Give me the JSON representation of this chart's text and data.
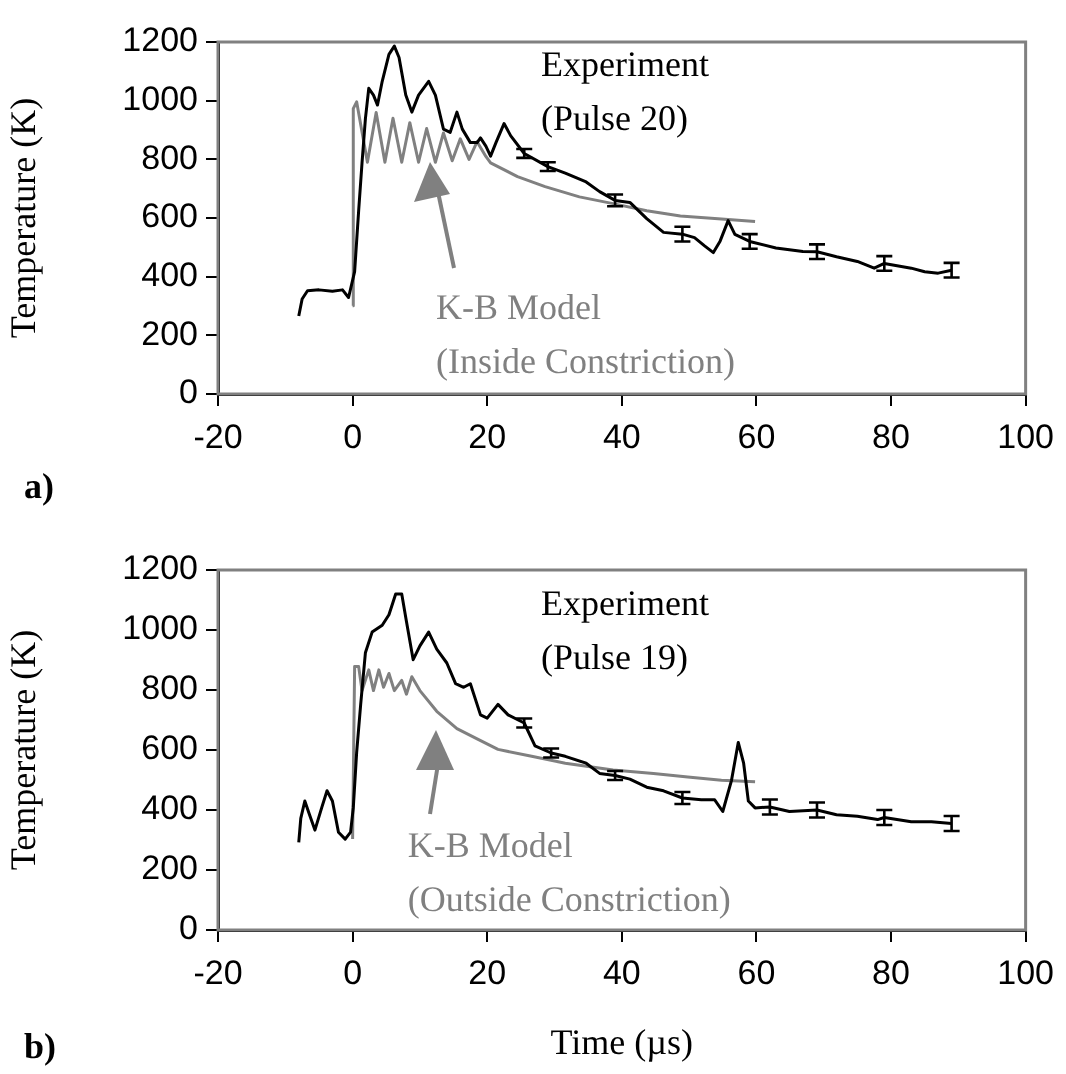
{
  "chart_data": [
    {
      "type": "line",
      "ylabel": "Temperature (K)",
      "xlim": [
        -20,
        100
      ],
      "xticks": [
        -20,
        0,
        20,
        40,
        60,
        80,
        100
      ],
      "ylim": [
        0,
        1200
      ],
      "yticks": [
        0,
        200,
        400,
        600,
        800,
        1000,
        1200
      ],
      "grid": false,
      "legend": false,
      "marker": "none",
      "annotations": [
        "Experiment (Pulse 20)",
        "K-B Model (Inside Constriction)",
        "a)"
      ],
      "series": [
        {
          "color": "#000000",
          "x": [
            -8,
            -7.5,
            -6.7,
            -5,
            -3,
            -1.5,
            -0.6,
            0.3,
            0.9,
            1.4,
            1.9,
            2.4,
            3.1,
            3.7,
            4.4,
            5.4,
            6.2,
            6.9,
            7.9,
            8.8,
            9.8,
            11.3,
            12.3,
            13.5,
            14.5,
            15.5,
            16.3,
            17.5,
            18.5,
            19,
            19.8,
            20.5,
            21.3,
            22.5,
            23.5,
            25.5,
            29,
            31.6,
            34.7,
            36.7,
            39,
            41.2,
            43.7,
            46.2,
            49,
            50.8,
            52.3,
            53.6,
            54.6,
            55.8,
            56.8,
            59,
            62.9,
            66.9,
            69,
            71.9,
            75,
            77.5,
            79,
            83,
            85,
            87,
            89
          ],
          "values": [
            266,
            324,
            352,
            355,
            350,
            355,
            329,
            417,
            625,
            788,
            938,
            1042,
            1019,
            985,
            1066,
            1158,
            1186,
            1147,
            1019,
            961,
            1019,
            1066,
            1019,
            903,
            892,
            961,
            903,
            857,
            857,
            873,
            845,
            811,
            857,
            922,
            880,
            820,
            775,
            753,
            723,
            690,
            660,
            653,
            598,
            551,
            545,
            533,
            505,
            482,
            521,
            591,
            544,
            520,
            498,
            486,
            485,
            468,
            452,
            429,
            445,
            429,
            417,
            412,
            422
          ],
          "errors": [
            null,
            null,
            null,
            null,
            null,
            null,
            null,
            null,
            null,
            null,
            null,
            null,
            null,
            null,
            null,
            null,
            null,
            null,
            null,
            null,
            null,
            null,
            null,
            null,
            null,
            null,
            null,
            null,
            null,
            null,
            null,
            null,
            null,
            null,
            null,
            15,
            15,
            null,
            null,
            null,
            20,
            null,
            null,
            null,
            25,
            null,
            null,
            null,
            null,
            null,
            null,
            25,
            null,
            null,
            25,
            null,
            null,
            null,
            25,
            null,
            null,
            null,
            25
          ]
        },
        {
          "color": "#808080",
          "x": [
            0,
            0.1,
            0.6,
            2.2,
            3.5,
            4.8,
            6,
            7.3,
            8.5,
            9.8,
            11,
            12.3,
            13.5,
            14.8,
            16,
            17.3,
            18.5,
            19.8,
            20.5,
            24.5,
            28.6,
            33.7,
            38.7,
            43.7,
            48.7,
            53.8,
            59.8
          ],
          "values": [
            301,
            973,
            996,
            790,
            960,
            790,
            940,
            790,
            925,
            790,
            905,
            790,
            890,
            795,
            870,
            800,
            860,
            810,
            788,
            741,
            707,
            672,
            649,
            625,
            607,
            598,
            588
          ]
        }
      ]
    },
    {
      "type": "line",
      "xlabel": "Time (µs)",
      "ylabel": "Temperature (K)",
      "xlim": [
        -20,
        100
      ],
      "xticks": [
        -20,
        0,
        20,
        40,
        60,
        80,
        100
      ],
      "ylim": [
        0,
        1200
      ],
      "yticks": [
        0,
        200,
        400,
        600,
        800,
        1000,
        1200
      ],
      "grid": false,
      "legend": false,
      "marker": "none",
      "annotations": [
        "Experiment (Pulse 19)",
        "K-B Model (Outside Constriction)",
        "b)"
      ],
      "series": [
        {
          "color": "#000000",
          "x": [
            -8,
            -7.7,
            -7.1,
            -6.4,
            -5.6,
            -4.6,
            -3.8,
            -3,
            -2.1,
            -1.1,
            -0.3,
            0.1,
            0.6,
            1.2,
            1.9,
            2.9,
            4.4,
            5.4,
            6.4,
            7.3,
            8,
            9,
            10,
            11.3,
            12.5,
            14,
            15.3,
            16.5,
            17.5,
            19,
            20,
            21.6,
            23.1,
            25.5,
            27.1,
            29.5,
            31.6,
            34.7,
            36.7,
            39,
            41.2,
            43.7,
            46.2,
            49,
            51.8,
            53.8,
            55,
            56.3,
            57.3,
            58.1,
            58.8,
            59.8,
            62,
            64.9,
            69,
            71.9,
            75,
            78,
            79,
            83,
            86,
            89
          ],
          "values": [
            292,
            372,
            430,
            384,
            333,
            407,
            464,
            430,
            326,
            303,
            326,
            407,
            591,
            752,
            924,
            993,
            1016,
            1051,
            1120,
            1120,
            1028,
            901,
            947,
            993,
            936,
            890,
            821,
            809,
            821,
            717,
            706,
            752,
            717,
            690,
            614,
            590,
            579,
            556,
            522,
            515,
            503,
            476,
            464,
            440,
            434,
            434,
            395,
            499,
            625,
            556,
            430,
            407,
            410,
            395,
            400,
            384,
            379,
            368,
            375,
            361,
            361,
            355
          ],
          "errors": [
            null,
            null,
            null,
            null,
            null,
            null,
            null,
            null,
            null,
            null,
            null,
            null,
            null,
            null,
            null,
            null,
            null,
            null,
            null,
            null,
            null,
            null,
            null,
            null,
            null,
            null,
            null,
            null,
            null,
            null,
            null,
            null,
            null,
            15,
            null,
            15,
            null,
            null,
            null,
            15,
            null,
            null,
            null,
            20,
            null,
            null,
            null,
            null,
            null,
            null,
            null,
            null,
            25,
            null,
            25,
            null,
            null,
            null,
            25,
            null,
            null,
            25
          ]
        },
        {
          "color": "#808080",
          "x": [
            0,
            0.3,
            0.9,
            1.4,
            2.4,
            3.1,
            3.9,
            4.6,
            5.4,
            6.2,
            7.3,
            8,
            8.8,
            10,
            12.5,
            15.5,
            18.5,
            21.6,
            26.6,
            31.6,
            38.7,
            44.7,
            49.8,
            54.8,
            59.8
          ],
          "values": [
            303,
            878,
            878,
            798,
            867,
            798,
            867,
            809,
            855,
            798,
            832,
            786,
            844,
            798,
            729,
            671,
            637,
            602,
            579,
            556,
            533,
            522,
            510,
            499,
            494
          ]
        }
      ]
    }
  ]
}
